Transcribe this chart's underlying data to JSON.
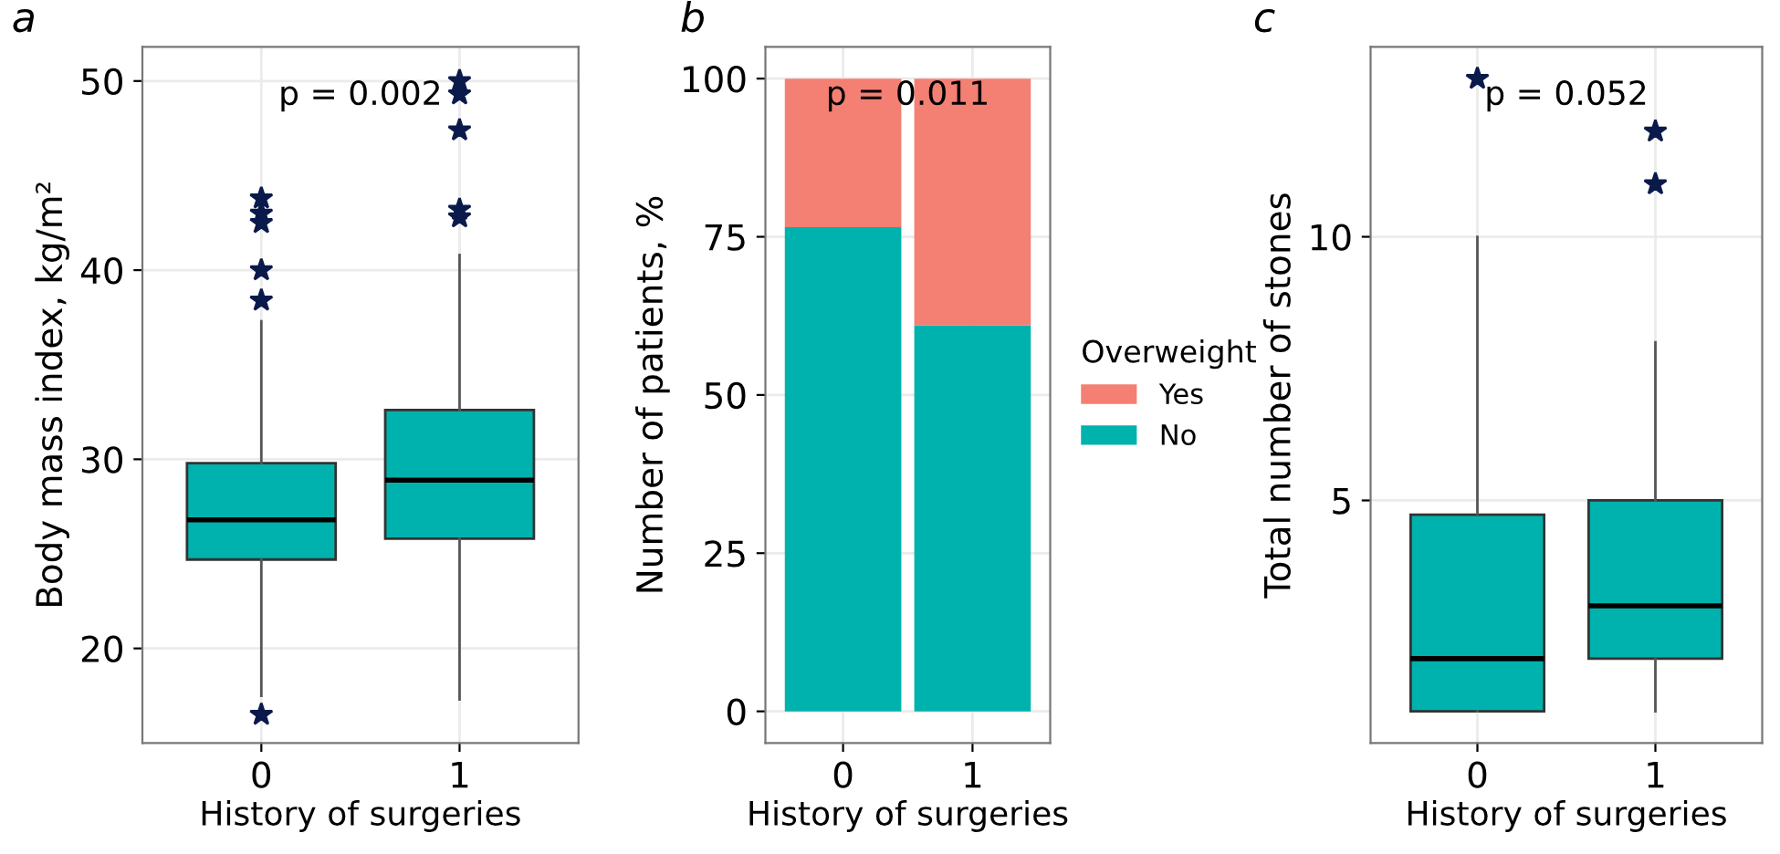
{
  "chart_data": [
    {
      "type": "box",
      "title": "a",
      "xlabel": "History of surgeries",
      "ylabel": "Body mass index, kg/m²",
      "categories": [
        "0",
        "1"
      ],
      "color": "#00b2ad",
      "ylim": [
        15,
        51.8
      ],
      "yticks": [
        20,
        30,
        40,
        50
      ],
      "grid": true,
      "marker": "star",
      "boxes": [
        {
          "low": 17.5,
          "q1": 24.7,
          "median": 26.8,
          "q3": 29.8,
          "high": 37.3,
          "outliers": [
            16.5,
            38.4,
            40,
            42.5,
            43,
            43.8
          ]
        },
        {
          "low": 17.3,
          "q1": 25.8,
          "median": 28.9,
          "q3": 32.6,
          "high": 40.8,
          "outliers": [
            42.8,
            43.2,
            47.4,
            49.3,
            50
          ]
        }
      ],
      "annotations": [
        "p = 0.002"
      ]
    },
    {
      "type": "bar",
      "title": "b",
      "xlabel": "History of surgeries",
      "ylabel": "Number of patients, %",
      "categories": [
        "0",
        "1"
      ],
      "stacked": true,
      "ylim": [
        -5,
        105
      ],
      "yticks": [
        0,
        25,
        50,
        75,
        100
      ],
      "grid": true,
      "legend": "right",
      "legend_title": "Overweight",
      "series": [
        {
          "name": "No",
          "color": "#00b2ad",
          "values": [
            76.5,
            61
          ]
        },
        {
          "name": "Yes",
          "color": "#f47f73",
          "values": [
            23.5,
            39
          ]
        }
      ],
      "annotations": [
        "p = 0.011"
      ]
    },
    {
      "type": "box",
      "title": "c",
      "xlabel": "History of surgeries",
      "ylabel": "Total number of stones",
      "categories": [
        "0",
        "1"
      ],
      "color": "#00b2ad",
      "ylim": [
        0.4,
        13.6
      ],
      "yticks": [
        5,
        10
      ],
      "grid": true,
      "marker": "star",
      "boxes": [
        {
          "low": 1,
          "q1": 1,
          "median": 2,
          "q3": 4.73,
          "high": 10,
          "outliers": [
            13
          ]
        },
        {
          "low": 1,
          "q1": 2,
          "median": 3,
          "q3": 5,
          "high": 8,
          "outliers": [
            11,
            12
          ]
        }
      ],
      "annotations": [
        "p = 0.052"
      ]
    }
  ]
}
